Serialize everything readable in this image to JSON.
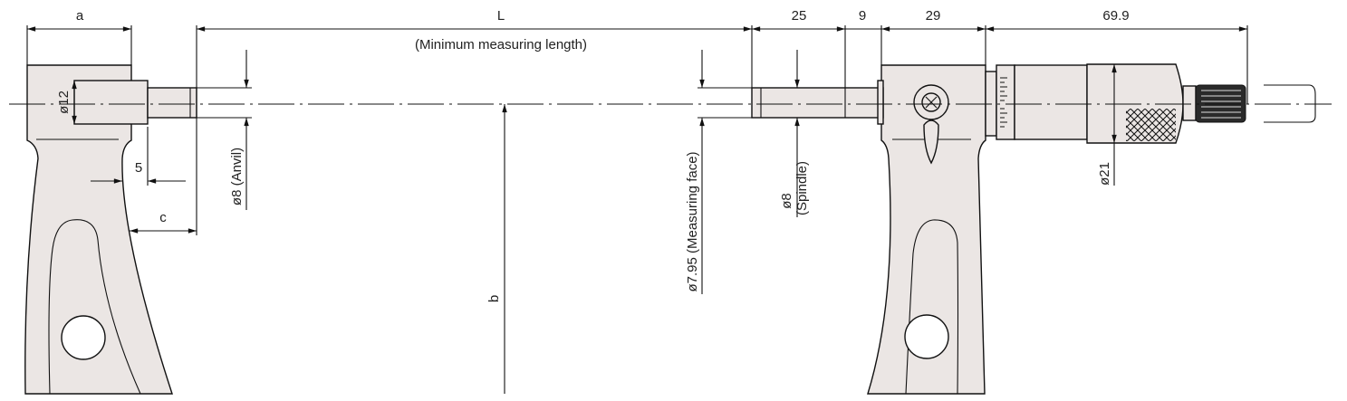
{
  "diagram": {
    "dimensions": {
      "a": "a",
      "L": "L",
      "L_note": "(Minimum measuring length)",
      "d25": "25",
      "d9": "9",
      "d29": "29",
      "d69_9": "69.9",
      "dia12": "ø12",
      "dim5": "5",
      "c": "c",
      "b": "b",
      "anvil": "ø8 (Anvil)",
      "measuring_face": "ø7.95 (Measuring face)",
      "spindle_dia": "ø8",
      "spindle_label": "(Spindle)",
      "dia21": "ø21"
    },
    "colors": {
      "frame_fill": "#ebe6e4",
      "line": "#111111"
    }
  }
}
